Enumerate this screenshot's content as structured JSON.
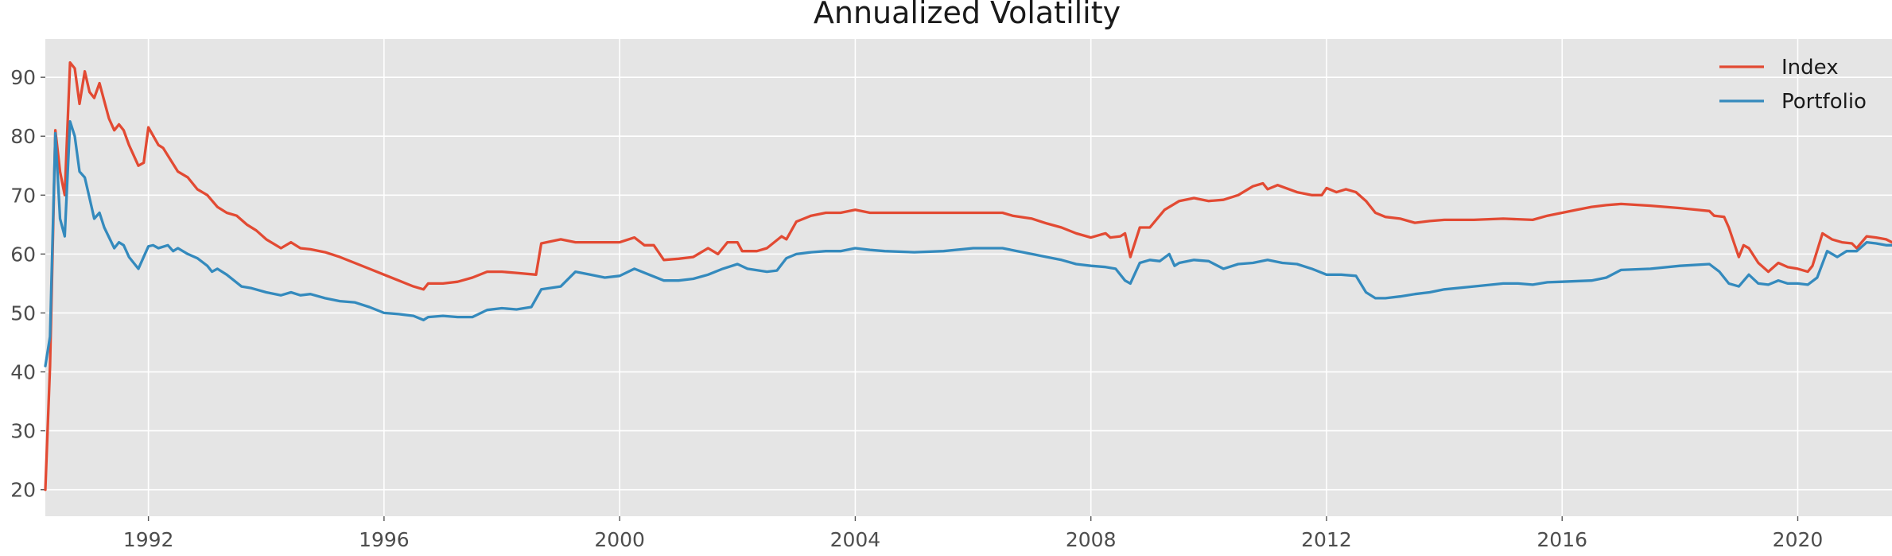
{
  "chart_data": {
    "type": "line",
    "title": "Annualized Volatility",
    "xlabel": "",
    "ylabel": "",
    "xlim": [
      1990.25,
      2021.6
    ],
    "ylim": [
      15.5,
      96.5
    ],
    "x_ticks": [
      1992,
      1996,
      2000,
      2004,
      2008,
      2012,
      2016,
      2020
    ],
    "y_ticks": [
      20,
      30,
      40,
      50,
      60,
      70,
      80,
      90
    ],
    "grid": true,
    "legend_position": "top-right",
    "series": [
      {
        "name": "Index",
        "color": "#e24a33",
        "points": [
          [
            1990.25,
            20
          ],
          [
            1990.33,
            41
          ],
          [
            1990.42,
            81
          ],
          [
            1990.5,
            74
          ],
          [
            1990.58,
            70
          ],
          [
            1990.67,
            92.5
          ],
          [
            1990.75,
            91.5
          ],
          [
            1990.83,
            85.5
          ],
          [
            1990.92,
            91
          ],
          [
            1991.0,
            87.5
          ],
          [
            1991.08,
            86.5
          ],
          [
            1991.17,
            89
          ],
          [
            1991.33,
            83
          ],
          [
            1991.42,
            81
          ],
          [
            1991.5,
            82
          ],
          [
            1991.58,
            81
          ],
          [
            1991.67,
            78.5
          ],
          [
            1991.83,
            75
          ],
          [
            1991.92,
            75.5
          ],
          [
            1992.0,
            81.5
          ],
          [
            1992.17,
            78.5
          ],
          [
            1992.25,
            78
          ],
          [
            1992.5,
            74
          ],
          [
            1992.67,
            73
          ],
          [
            1992.83,
            71
          ],
          [
            1993.0,
            70
          ],
          [
            1993.17,
            68
          ],
          [
            1993.33,
            67
          ],
          [
            1993.5,
            66.5
          ],
          [
            1993.67,
            65
          ],
          [
            1993.83,
            64
          ],
          [
            1994.0,
            62.5
          ],
          [
            1994.25,
            61
          ],
          [
            1994.42,
            62
          ],
          [
            1994.58,
            61
          ],
          [
            1994.75,
            60.8
          ],
          [
            1995.0,
            60.3
          ],
          [
            1995.25,
            59.5
          ],
          [
            1995.5,
            58.5
          ],
          [
            1995.75,
            57.5
          ],
          [
            1996.0,
            56.5
          ],
          [
            1996.25,
            55.5
          ],
          [
            1996.5,
            54.5
          ],
          [
            1996.67,
            54
          ],
          [
            1996.75,
            55
          ],
          [
            1997.0,
            55
          ],
          [
            1997.25,
            55.3
          ],
          [
            1997.5,
            56
          ],
          [
            1997.75,
            57
          ],
          [
            1998.0,
            57
          ],
          [
            1998.25,
            56.8
          ],
          [
            1998.58,
            56.5
          ],
          [
            1998.67,
            61.8
          ],
          [
            1999.0,
            62.5
          ],
          [
            1999.25,
            62
          ],
          [
            1999.5,
            62
          ],
          [
            1999.75,
            62
          ],
          [
            2000.0,
            62
          ],
          [
            2000.25,
            62.8
          ],
          [
            2000.42,
            61.5
          ],
          [
            2000.58,
            61.5
          ],
          [
            2000.75,
            59
          ],
          [
            2001.0,
            59.2
          ],
          [
            2001.25,
            59.5
          ],
          [
            2001.5,
            61
          ],
          [
            2001.67,
            60
          ],
          [
            2001.83,
            62
          ],
          [
            2002.0,
            62
          ],
          [
            2002.08,
            60.5
          ],
          [
            2002.33,
            60.5
          ],
          [
            2002.5,
            61
          ],
          [
            2002.75,
            63
          ],
          [
            2002.83,
            62.5
          ],
          [
            2003.0,
            65.5
          ],
          [
            2003.25,
            66.5
          ],
          [
            2003.5,
            67
          ],
          [
            2003.75,
            67
          ],
          [
            2004.0,
            67.5
          ],
          [
            2004.25,
            67
          ],
          [
            2004.5,
            67
          ],
          [
            2004.75,
            67
          ],
          [
            2005.0,
            67
          ],
          [
            2005.5,
            67
          ],
          [
            2006.0,
            67
          ],
          [
            2006.5,
            67
          ],
          [
            2006.67,
            66.5
          ],
          [
            2007.0,
            66
          ],
          [
            2007.25,
            65.2
          ],
          [
            2007.5,
            64.5
          ],
          [
            2007.75,
            63.5
          ],
          [
            2008.0,
            62.8
          ],
          [
            2008.17,
            63.3
          ],
          [
            2008.25,
            63.5
          ],
          [
            2008.33,
            62.8
          ],
          [
            2008.5,
            63
          ],
          [
            2008.58,
            63.5
          ],
          [
            2008.67,
            59.5
          ],
          [
            2008.83,
            64.5
          ],
          [
            2009.0,
            64.5
          ],
          [
            2009.25,
            67.5
          ],
          [
            2009.5,
            69
          ],
          [
            2009.75,
            69.5
          ],
          [
            2010.0,
            69
          ],
          [
            2010.25,
            69.2
          ],
          [
            2010.5,
            70
          ],
          [
            2010.75,
            71.5
          ],
          [
            2010.92,
            72
          ],
          [
            2011.0,
            71
          ],
          [
            2011.17,
            71.7
          ],
          [
            2011.5,
            70.5
          ],
          [
            2011.75,
            70
          ],
          [
            2011.92,
            70
          ],
          [
            2012.0,
            71.2
          ],
          [
            2012.17,
            70.5
          ],
          [
            2012.33,
            71
          ],
          [
            2012.5,
            70.5
          ],
          [
            2012.67,
            69
          ],
          [
            2012.83,
            67
          ],
          [
            2013.0,
            66.3
          ],
          [
            2013.25,
            66
          ],
          [
            2013.5,
            65.3
          ],
          [
            2013.75,
            65.6
          ],
          [
            2014.0,
            65.8
          ],
          [
            2014.5,
            65.8
          ],
          [
            2015.0,
            66
          ],
          [
            2015.5,
            65.8
          ],
          [
            2015.75,
            66.5
          ],
          [
            2016.0,
            67
          ],
          [
            2016.25,
            67.5
          ],
          [
            2016.5,
            68
          ],
          [
            2016.75,
            68.3
          ],
          [
            2017.0,
            68.5
          ],
          [
            2017.5,
            68.2
          ],
          [
            2018.0,
            67.8
          ],
          [
            2018.5,
            67.3
          ],
          [
            2018.58,
            66.5
          ],
          [
            2018.75,
            66.3
          ],
          [
            2018.83,
            64.5
          ],
          [
            2019.0,
            59.5
          ],
          [
            2019.08,
            61.5
          ],
          [
            2019.17,
            61
          ],
          [
            2019.33,
            58.5
          ],
          [
            2019.5,
            57
          ],
          [
            2019.67,
            58.5
          ],
          [
            2019.83,
            57.8
          ],
          [
            2020.0,
            57.5
          ],
          [
            2020.17,
            57
          ],
          [
            2020.25,
            58
          ],
          [
            2020.42,
            63.5
          ],
          [
            2020.58,
            62.5
          ],
          [
            2020.75,
            62
          ],
          [
            2020.92,
            61.8
          ],
          [
            2021.0,
            61
          ],
          [
            2021.17,
            63
          ],
          [
            2021.33,
            62.8
          ],
          [
            2021.5,
            62.5
          ],
          [
            2021.6,
            62
          ]
        ]
      },
      {
        "name": "Portfolio",
        "color": "#348abd",
        "points": [
          [
            1990.25,
            41
          ],
          [
            1990.33,
            46
          ],
          [
            1990.42,
            80.5
          ],
          [
            1990.5,
            66
          ],
          [
            1990.58,
            63
          ],
          [
            1990.67,
            82.5
          ],
          [
            1990.75,
            80
          ],
          [
            1990.83,
            74
          ],
          [
            1990.92,
            73
          ],
          [
            1991.0,
            69.5
          ],
          [
            1991.08,
            66
          ],
          [
            1991.17,
            67
          ],
          [
            1991.25,
            64.5
          ],
          [
            1991.42,
            61
          ],
          [
            1991.5,
            62
          ],
          [
            1991.58,
            61.5
          ],
          [
            1991.67,
            59.5
          ],
          [
            1991.83,
            57.5
          ],
          [
            1992.0,
            61.3
          ],
          [
            1992.08,
            61.5
          ],
          [
            1992.17,
            61
          ],
          [
            1992.33,
            61.5
          ],
          [
            1992.42,
            60.5
          ],
          [
            1992.5,
            61
          ],
          [
            1992.67,
            60
          ],
          [
            1992.83,
            59.3
          ],
          [
            1993.0,
            58
          ],
          [
            1993.08,
            57
          ],
          [
            1993.17,
            57.5
          ],
          [
            1993.33,
            56.5
          ],
          [
            1993.58,
            54.5
          ],
          [
            1993.75,
            54.2
          ],
          [
            1994.0,
            53.5
          ],
          [
            1994.25,
            53
          ],
          [
            1994.42,
            53.5
          ],
          [
            1994.58,
            53
          ],
          [
            1994.75,
            53.2
          ],
          [
            1995.0,
            52.5
          ],
          [
            1995.25,
            52
          ],
          [
            1995.5,
            51.8
          ],
          [
            1995.75,
            51
          ],
          [
            1996.0,
            50
          ],
          [
            1996.25,
            49.8
          ],
          [
            1996.5,
            49.5
          ],
          [
            1996.67,
            48.8
          ],
          [
            1996.75,
            49.3
          ],
          [
            1997.0,
            49.5
          ],
          [
            1997.25,
            49.3
          ],
          [
            1997.5,
            49.3
          ],
          [
            1997.75,
            50.5
          ],
          [
            1998.0,
            50.8
          ],
          [
            1998.25,
            50.6
          ],
          [
            1998.5,
            51
          ],
          [
            1998.67,
            54
          ],
          [
            1999.0,
            54.5
          ],
          [
            1999.25,
            57
          ],
          [
            1999.5,
            56.5
          ],
          [
            1999.75,
            56
          ],
          [
            2000.0,
            56.3
          ],
          [
            2000.25,
            57.5
          ],
          [
            2000.5,
            56.5
          ],
          [
            2000.75,
            55.5
          ],
          [
            2001.0,
            55.5
          ],
          [
            2001.25,
            55.8
          ],
          [
            2001.5,
            56.5
          ],
          [
            2001.75,
            57.5
          ],
          [
            2002.0,
            58.3
          ],
          [
            2002.17,
            57.5
          ],
          [
            2002.5,
            57
          ],
          [
            2002.67,
            57.2
          ],
          [
            2002.83,
            59.3
          ],
          [
            2003.0,
            60
          ],
          [
            2003.25,
            60.3
          ],
          [
            2003.5,
            60.5
          ],
          [
            2003.75,
            60.5
          ],
          [
            2004.0,
            61
          ],
          [
            2004.25,
            60.7
          ],
          [
            2004.5,
            60.5
          ],
          [
            2005.0,
            60.3
          ],
          [
            2005.5,
            60.5
          ],
          [
            2006.0,
            61
          ],
          [
            2006.5,
            61
          ],
          [
            2006.75,
            60.5
          ],
          [
            2007.0,
            60
          ],
          [
            2007.25,
            59.5
          ],
          [
            2007.5,
            59
          ],
          [
            2007.75,
            58.3
          ],
          [
            2008.0,
            58
          ],
          [
            2008.25,
            57.8
          ],
          [
            2008.42,
            57.5
          ],
          [
            2008.58,
            55.5
          ],
          [
            2008.67,
            55
          ],
          [
            2008.83,
            58.5
          ],
          [
            2009.0,
            59
          ],
          [
            2009.17,
            58.8
          ],
          [
            2009.33,
            60
          ],
          [
            2009.42,
            58
          ],
          [
            2009.5,
            58.5
          ],
          [
            2009.75,
            59
          ],
          [
            2010.0,
            58.8
          ],
          [
            2010.25,
            57.5
          ],
          [
            2010.5,
            58.3
          ],
          [
            2010.75,
            58.5
          ],
          [
            2011.0,
            59
          ],
          [
            2011.25,
            58.5
          ],
          [
            2011.5,
            58.3
          ],
          [
            2011.75,
            57.5
          ],
          [
            2012.0,
            56.5
          ],
          [
            2012.25,
            56.5
          ],
          [
            2012.5,
            56.3
          ],
          [
            2012.67,
            53.5
          ],
          [
            2012.83,
            52.5
          ],
          [
            2013.0,
            52.5
          ],
          [
            2013.25,
            52.8
          ],
          [
            2013.5,
            53.2
          ],
          [
            2013.75,
            53.5
          ],
          [
            2014.0,
            54
          ],
          [
            2014.5,
            54.5
          ],
          [
            2015.0,
            55
          ],
          [
            2015.25,
            55
          ],
          [
            2015.5,
            54.8
          ],
          [
            2015.75,
            55.2
          ],
          [
            2016.0,
            55.3
          ],
          [
            2016.5,
            55.5
          ],
          [
            2016.75,
            56
          ],
          [
            2017.0,
            57.3
          ],
          [
            2017.5,
            57.5
          ],
          [
            2018.0,
            58
          ],
          [
            2018.5,
            58.3
          ],
          [
            2018.67,
            57
          ],
          [
            2018.83,
            55
          ],
          [
            2019.0,
            54.5
          ],
          [
            2019.17,
            56.5
          ],
          [
            2019.33,
            55
          ],
          [
            2019.5,
            54.8
          ],
          [
            2019.67,
            55.5
          ],
          [
            2019.83,
            55
          ],
          [
            2020.0,
            55
          ],
          [
            2020.17,
            54.8
          ],
          [
            2020.33,
            56
          ],
          [
            2020.5,
            60.5
          ],
          [
            2020.67,
            59.5
          ],
          [
            2020.83,
            60.5
          ],
          [
            2021.0,
            60.5
          ],
          [
            2021.17,
            62
          ],
          [
            2021.33,
            61.8
          ],
          [
            2021.5,
            61.5
          ],
          [
            2021.6,
            61.5
          ]
        ]
      }
    ]
  }
}
